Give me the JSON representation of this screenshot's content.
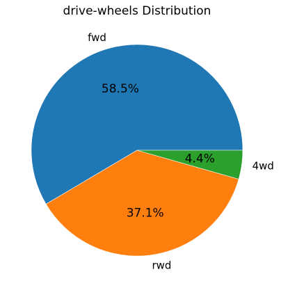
{
  "chart_data": {
    "type": "pie",
    "title": "drive-wheels Distribution",
    "slices": [
      {
        "label": "fwd",
        "percent_label": "58.5%",
        "value": 58.5,
        "color": "#1f77b4"
      },
      {
        "label": "rwd",
        "percent_label": "37.1%",
        "value": 37.1,
        "color": "#ff7f0e"
      },
      {
        "label": "4wd",
        "percent_label": "4.4%",
        "value": 4.4,
        "color": "#2ca02c"
      }
    ],
    "start_angle_deg": 0,
    "direction": "counterclockwise",
    "legend": "none"
  }
}
